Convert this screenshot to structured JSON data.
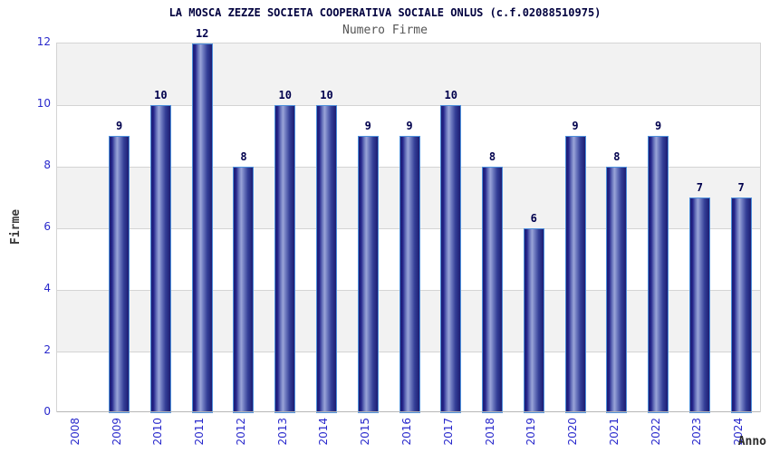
{
  "header": {
    "title": "LA MOSCA ZEZZE SOCIETA COOPERATIVA SOCIALE ONLUS (c.f.02088510975)",
    "subtitle": "Numero Firme"
  },
  "chart_data": {
    "type": "bar",
    "title": "LA MOSCA ZEZZE SOCIETA COOPERATIVA SOCIALE ONLUS (c.f.02088510975)",
    "subtitle": "Numero Firme",
    "xlabel": "Anno",
    "ylabel": "Firme",
    "categories": [
      "2008",
      "2009",
      "2010",
      "2011",
      "2012",
      "2013",
      "2014",
      "2015",
      "2016",
      "2017",
      "2018",
      "2019",
      "2020",
      "2021",
      "2022",
      "2023",
      "2024"
    ],
    "values": [
      0,
      9,
      10,
      12,
      8,
      10,
      10,
      9,
      9,
      10,
      8,
      6,
      9,
      8,
      9,
      7,
      7
    ],
    "ylim": [
      0,
      12
    ],
    "ytick_step": 2,
    "legend": "none",
    "grid": "horizontal-bands-alternating",
    "colors": {
      "bar_dark": "#1d1d72",
      "bar_light": "#9aa4d8",
      "bar_border": "#4d8fdb",
      "value_label": "#00004d",
      "tick_label_blue": "#2929cc",
      "band_gray": "#f2f2f2",
      "grid_line": "#d4d4d4",
      "title_navy": "#00003e",
      "subtitle_gray": "#555555",
      "axis_title_gray": "#3a3a3a",
      "background": "#ffffff"
    }
  }
}
